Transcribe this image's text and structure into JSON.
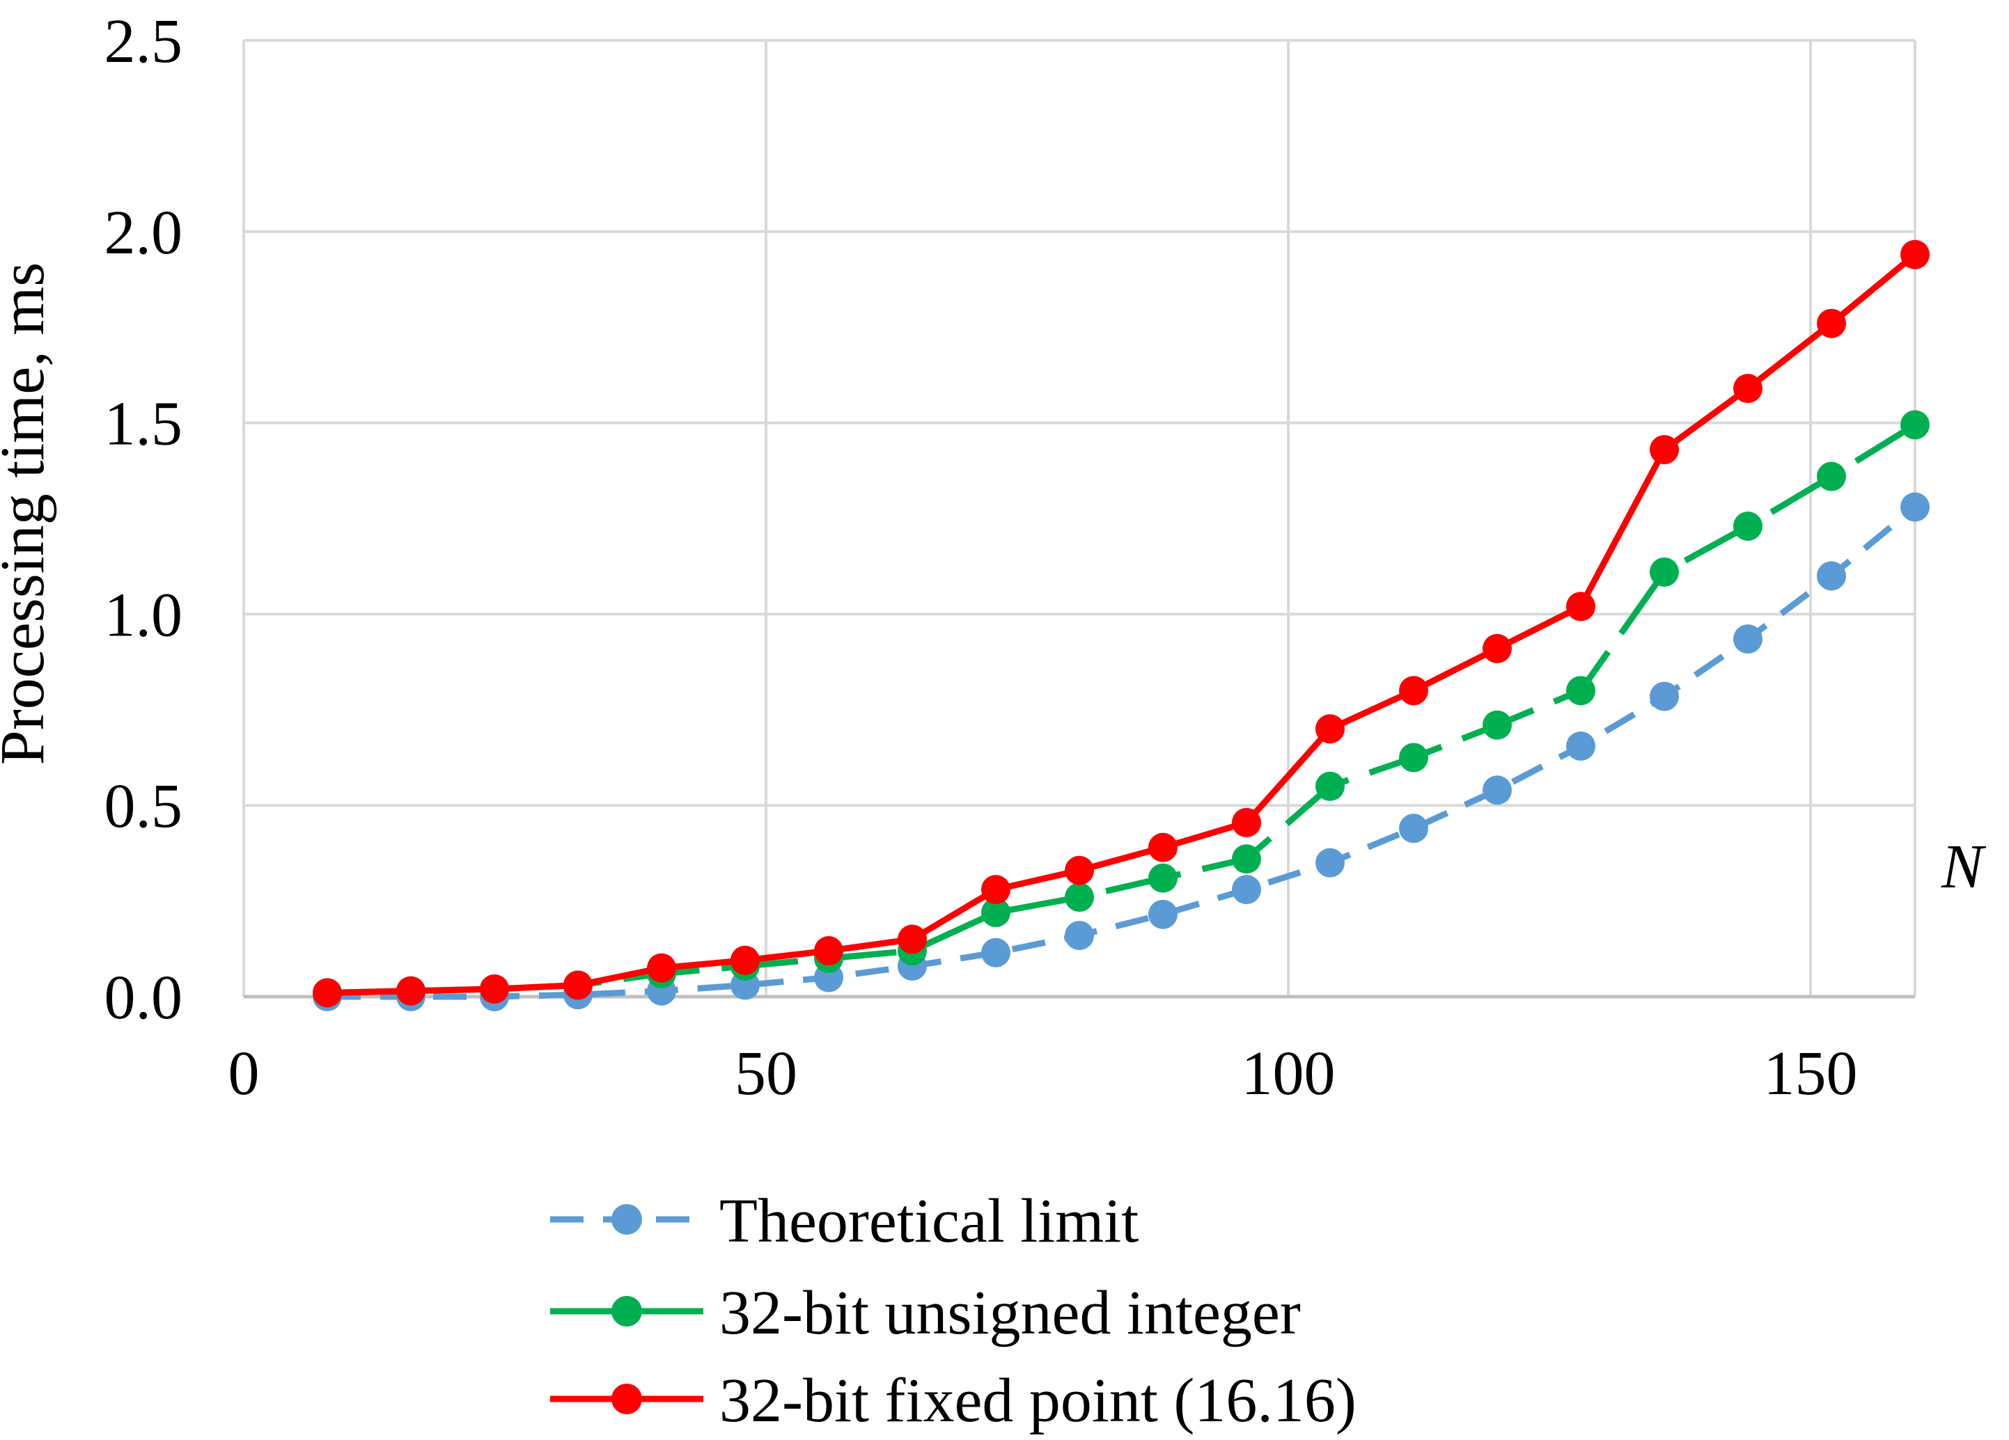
{
  "chart_data": {
    "type": "line",
    "xlabel": "N",
    "ylabel": "Processing time, ms",
    "xlim": [
      0,
      160
    ],
    "ylim": [
      0,
      2.5
    ],
    "xticks": [
      "0",
      "50",
      "100",
      "150"
    ],
    "yticks": [
      "0.0",
      "0.5",
      "1.0",
      "1.5",
      "2.0",
      "2.5"
    ],
    "grid": true,
    "legend_position": "bottom",
    "x": [
      8,
      16,
      24,
      32,
      40,
      48,
      56,
      64,
      72,
      80,
      88,
      96,
      104,
      112,
      120,
      128,
      136,
      144,
      152,
      160
    ],
    "series": [
      {
        "name": "Theoretical limit",
        "color": "#5b9bd5",
        "line_style": "dashed",
        "values": [
          0.0,
          0.0,
          0.0,
          0.005,
          0.015,
          0.03,
          0.05,
          0.08,
          0.115,
          0.16,
          0.215,
          0.28,
          0.35,
          0.44,
          0.54,
          0.655,
          0.785,
          0.935,
          1.1,
          1.28
        ]
      },
      {
        "name": "32-bit unsigned integer",
        "color": "#00b050",
        "line_style": "long-dash",
        "values": [
          0.01,
          0.015,
          0.02,
          0.03,
          0.06,
          0.08,
          0.1,
          0.12,
          0.22,
          0.26,
          0.31,
          0.36,
          0.55,
          0.625,
          0.71,
          0.8,
          1.11,
          1.23,
          1.36,
          1.495
        ]
      },
      {
        "name": "32-bit fixed point (16.16)",
        "color": "#ff0000",
        "line_style": "solid",
        "values": [
          0.01,
          0.015,
          0.02,
          0.03,
          0.075,
          0.095,
          0.12,
          0.15,
          0.28,
          0.33,
          0.39,
          0.455,
          0.7,
          0.8,
          0.91,
          1.02,
          1.43,
          1.59,
          1.76,
          1.94
        ]
      }
    ]
  }
}
